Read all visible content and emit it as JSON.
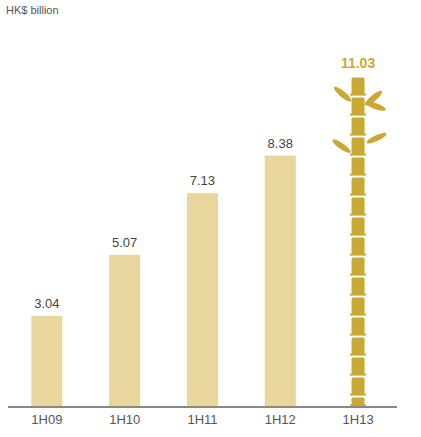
{
  "chart_data": {
    "type": "bar",
    "ylabel": "HK$ billion",
    "categories": [
      "1H09",
      "1H10",
      "1H11",
      "1H12",
      "1H13"
    ],
    "values": [
      3.04,
      5.07,
      7.13,
      8.38,
      11.03
    ],
    "colors": [
      "#e8d69d",
      "#e8d69d",
      "#e8d69d",
      "#e8d69d",
      "#c9a932"
    ],
    "ylim": [
      0,
      12.5
    ],
    "data_labels": true,
    "tick_labels": "x",
    "grid": false
  }
}
